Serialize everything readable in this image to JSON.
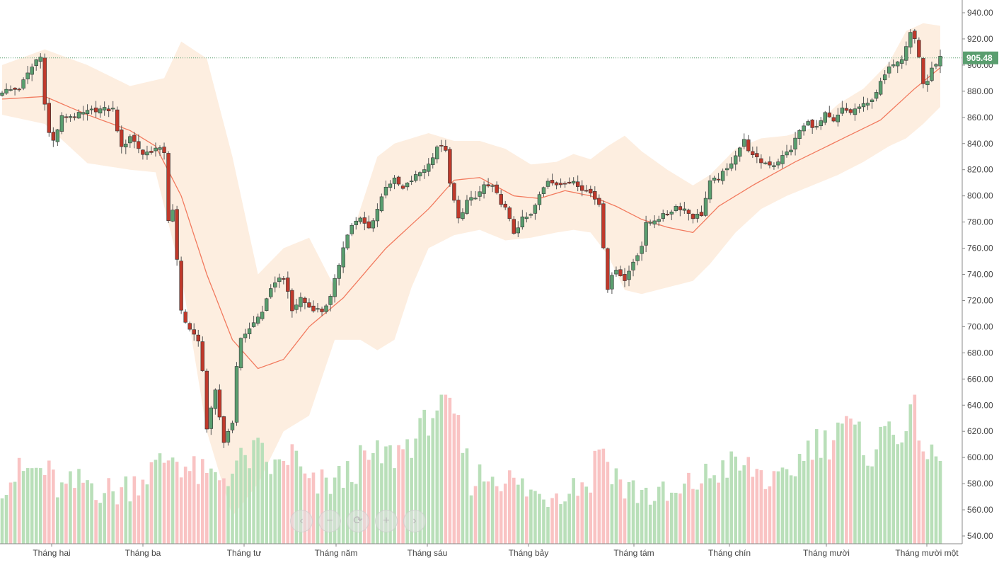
{
  "price_tag": "905.48",
  "nav_buttons": [
    {
      "icon": "chevron-left-icon",
      "glyph": "‹"
    },
    {
      "icon": "minus-icon",
      "glyph": "−"
    },
    {
      "icon": "reset-icon",
      "glyph": "⟳"
    },
    {
      "icon": "plus-icon",
      "glyph": "+"
    },
    {
      "icon": "chevron-right-icon",
      "glyph": "›"
    }
  ],
  "colors": {
    "up": "#5a9e6f",
    "down": "#c0392b",
    "vol_up": "#b9dfb9",
    "vol_down": "#f9c3c3",
    "band": "#fdeee0",
    "ma": "#f27a5e",
    "price_tag_bg": "#5a9e6f"
  },
  "chart_data": {
    "type": "candlestick",
    "title": "",
    "ylim": [
      530,
      945
    ],
    "y_ticks": [
      "940.00",
      "920.00",
      "900.00",
      "880.00",
      "860.00",
      "840.00",
      "820.00",
      "800.00",
      "780.00",
      "760.00",
      "740.00",
      "720.00",
      "700.00",
      "680.00",
      "660.00",
      "640.00",
      "620.00",
      "600.00",
      "580.00",
      "560.00",
      "540.00"
    ],
    "x_labels": [
      "Tháng hai",
      "Tháng ba",
      "Tháng tư",
      "Tháng năm",
      "Tháng sáu",
      "Tháng bảy",
      "Tháng tám",
      "Tháng chín",
      "Tháng mười",
      "Tháng mười một"
    ],
    "last_price": 905.48,
    "close_anchors": [
      [
        0,
        880
      ],
      [
        4,
        882
      ],
      [
        8,
        904
      ],
      [
        9,
        906
      ],
      [
        10,
        872
      ],
      [
        11,
        848
      ],
      [
        12,
        842
      ],
      [
        14,
        860
      ],
      [
        18,
        862
      ],
      [
        22,
        866
      ],
      [
        26,
        866
      ],
      [
        28,
        836
      ],
      [
        30,
        846
      ],
      [
        33,
        832
      ],
      [
        36,
        836
      ],
      [
        38,
        834
      ],
      [
        39,
        782
      ],
      [
        40,
        788
      ],
      [
        42,
        712
      ],
      [
        44,
        698
      ],
      [
        46,
        688
      ],
      [
        47,
        668
      ],
      [
        48,
        622
      ],
      [
        50,
        650
      ],
      [
        52,
        612
      ],
      [
        54,
        628
      ],
      [
        55,
        668
      ],
      [
        56,
        692
      ],
      [
        58,
        698
      ],
      [
        61,
        712
      ],
      [
        64,
        735
      ],
      [
        66,
        738
      ],
      [
        68,
        712
      ],
      [
        70,
        722
      ],
      [
        72,
        715
      ],
      [
        75,
        712
      ],
      [
        77,
        722
      ],
      [
        79,
        748
      ],
      [
        80,
        762
      ],
      [
        82,
        778
      ],
      [
        84,
        782
      ],
      [
        86,
        775
      ],
      [
        88,
        790
      ],
      [
        90,
        808
      ],
      [
        92,
        812
      ],
      [
        94,
        805
      ],
      [
        96,
        812
      ],
      [
        98,
        818
      ],
      [
        100,
        824
      ],
      [
        102,
        838
      ],
      [
        104,
        836
      ],
      [
        105,
        808
      ],
      [
        106,
        796
      ],
      [
        107,
        782
      ],
      [
        109,
        796
      ],
      [
        111,
        798
      ],
      [
        113,
        808
      ],
      [
        115,
        806
      ],
      [
        118,
        790
      ],
      [
        120,
        772
      ],
      [
        122,
        782
      ],
      [
        124,
        785
      ],
      [
        126,
        800
      ],
      [
        128,
        812
      ],
      [
        130,
        810
      ],
      [
        132,
        808
      ],
      [
        134,
        812
      ],
      [
        136,
        806
      ],
      [
        138,
        802
      ],
      [
        140,
        794
      ],
      [
        141,
        762
      ],
      [
        142,
        730
      ],
      [
        144,
        745
      ],
      [
        146,
        735
      ],
      [
        148,
        750
      ],
      [
        150,
        762
      ],
      [
        151,
        778
      ],
      [
        153,
        782
      ],
      [
        156,
        786
      ],
      [
        158,
        792
      ],
      [
        160,
        790
      ],
      [
        162,
        784
      ],
      [
        164,
        786
      ],
      [
        166,
        810
      ],
      [
        168,
        814
      ],
      [
        170,
        820
      ],
      [
        172,
        832
      ],
      [
        174,
        842
      ],
      [
        176,
        830
      ],
      [
        178,
        826
      ],
      [
        181,
        824
      ],
      [
        183,
        830
      ],
      [
        185,
        836
      ],
      [
        187,
        850
      ],
      [
        189,
        856
      ],
      [
        191,
        852
      ],
      [
        193,
        862
      ],
      [
        195,
        856
      ],
      [
        197,
        866
      ],
      [
        199,
        864
      ],
      [
        201,
        868
      ],
      [
        203,
        870
      ],
      [
        205,
        880
      ],
      [
        207,
        892
      ],
      [
        209,
        902
      ],
      [
        211,
        906
      ],
      [
        212,
        916
      ],
      [
        213,
        926
      ],
      [
        214,
        920
      ],
      [
        215,
        906
      ],
      [
        216,
        886
      ],
      [
        217,
        888
      ],
      [
        218,
        896
      ],
      [
        219,
        902
      ],
      [
        220,
        905.48
      ]
    ],
    "ma_anchors": [
      [
        0,
        874
      ],
      [
        10,
        876
      ],
      [
        20,
        862
      ],
      [
        30,
        850
      ],
      [
        36,
        838
      ],
      [
        42,
        800
      ],
      [
        48,
        740
      ],
      [
        54,
        690
      ],
      [
        60,
        668
      ],
      [
        66,
        675
      ],
      [
        72,
        700
      ],
      [
        80,
        722
      ],
      [
        90,
        760
      ],
      [
        100,
        790
      ],
      [
        106,
        812
      ],
      [
        112,
        814
      ],
      [
        120,
        800
      ],
      [
        126,
        798
      ],
      [
        132,
        804
      ],
      [
        138,
        800
      ],
      [
        144,
        792
      ],
      [
        150,
        782
      ],
      [
        156,
        776
      ],
      [
        162,
        772
      ],
      [
        168,
        792
      ],
      [
        176,
        808
      ],
      [
        186,
        826
      ],
      [
        196,
        842
      ],
      [
        206,
        858
      ],
      [
        214,
        882
      ],
      [
        220,
        898
      ]
    ],
    "band_upper_anchors": [
      [
        0,
        900
      ],
      [
        10,
        912
      ],
      [
        20,
        900
      ],
      [
        30,
        884
      ],
      [
        38,
        890
      ],
      [
        42,
        918
      ],
      [
        48,
        905
      ],
      [
        54,
        830
      ],
      [
        60,
        740
      ],
      [
        66,
        760
      ],
      [
        72,
        768
      ],
      [
        78,
        730
      ],
      [
        84,
        790
      ],
      [
        88,
        830
      ],
      [
        92,
        840
      ],
      [
        96,
        844
      ],
      [
        100,
        848
      ],
      [
        106,
        842
      ],
      [
        112,
        842
      ],
      [
        118,
        836
      ],
      [
        124,
        824
      ],
      [
        130,
        826
      ],
      [
        134,
        832
      ],
      [
        138,
        828
      ],
      [
        142,
        838
      ],
      [
        146,
        846
      ],
      [
        150,
        834
      ],
      [
        156,
        820
      ],
      [
        162,
        808
      ],
      [
        166,
        816
      ],
      [
        172,
        836
      ],
      [
        178,
        844
      ],
      [
        184,
        846
      ],
      [
        190,
        852
      ],
      [
        196,
        870
      ],
      [
        202,
        882
      ],
      [
        208,
        902
      ],
      [
        212,
        926
      ],
      [
        216,
        932
      ],
      [
        220,
        930
      ]
    ],
    "band_lower_anchors": [
      [
        0,
        862
      ],
      [
        10,
        855
      ],
      [
        20,
        825
      ],
      [
        30,
        820
      ],
      [
        36,
        818
      ],
      [
        42,
        740
      ],
      [
        48,
        620
      ],
      [
        54,
        555
      ],
      [
        60,
        580
      ],
      [
        66,
        620
      ],
      [
        72,
        632
      ],
      [
        78,
        690
      ],
      [
        84,
        690
      ],
      [
        88,
        682
      ],
      [
        92,
        690
      ],
      [
        96,
        730
      ],
      [
        100,
        760
      ],
      [
        106,
        770
      ],
      [
        112,
        774
      ],
      [
        118,
        766
      ],
      [
        124,
        768
      ],
      [
        130,
        772
      ],
      [
        134,
        774
      ],
      [
        138,
        772
      ],
      [
        142,
        755
      ],
      [
        146,
        728
      ],
      [
        150,
        725
      ],
      [
        156,
        730
      ],
      [
        162,
        735
      ],
      [
        166,
        748
      ],
      [
        172,
        772
      ],
      [
        178,
        790
      ],
      [
        184,
        800
      ],
      [
        190,
        808
      ],
      [
        196,
        816
      ],
      [
        202,
        826
      ],
      [
        208,
        838
      ],
      [
        212,
        844
      ],
      [
        216,
        855
      ],
      [
        220,
        868
      ]
    ],
    "volume_anchors": [
      [
        0,
        582
      ],
      [
        6,
        590
      ],
      [
        10,
        590
      ],
      [
        14,
        574
      ],
      [
        20,
        582
      ],
      [
        26,
        572
      ],
      [
        30,
        580
      ],
      [
        36,
        592
      ],
      [
        40,
        602
      ],
      [
        44,
        590
      ],
      [
        48,
        584
      ],
      [
        52,
        586
      ],
      [
        56,
        596
      ],
      [
        60,
        604
      ],
      [
        64,
        590
      ],
      [
        68,
        604
      ],
      [
        72,
        576
      ],
      [
        76,
        580
      ],
      [
        80,
        584
      ],
      [
        84,
        596
      ],
      [
        88,
        600
      ],
      [
        92,
        602
      ],
      [
        94,
        608
      ],
      [
        98,
        618
      ],
      [
        100,
        630
      ],
      [
        102,
        640
      ],
      [
        106,
        632
      ],
      [
        110,
        584
      ],
      [
        116,
        588
      ],
      [
        120,
        580
      ],
      [
        126,
        570
      ],
      [
        132,
        578
      ],
      [
        138,
        582
      ],
      [
        140,
        612
      ],
      [
        142,
        598
      ],
      [
        146,
        576
      ],
      [
        150,
        574
      ],
      [
        154,
        570
      ],
      [
        158,
        568
      ],
      [
        162,
        580
      ],
      [
        166,
        586
      ],
      [
        170,
        594
      ],
      [
        174,
        592
      ],
      [
        178,
        588
      ],
      [
        182,
        576
      ],
      [
        186,
        594
      ],
      [
        190,
        612
      ],
      [
        194,
        612
      ],
      [
        196,
        628
      ],
      [
        200,
        618
      ],
      [
        204,
        602
      ],
      [
        208,
        626
      ],
      [
        212,
        618
      ],
      [
        214,
        636
      ],
      [
        216,
        612
      ],
      [
        218,
        596
      ],
      [
        220,
        600
      ]
    ],
    "vol_axis": [
      540,
      650
    ]
  }
}
